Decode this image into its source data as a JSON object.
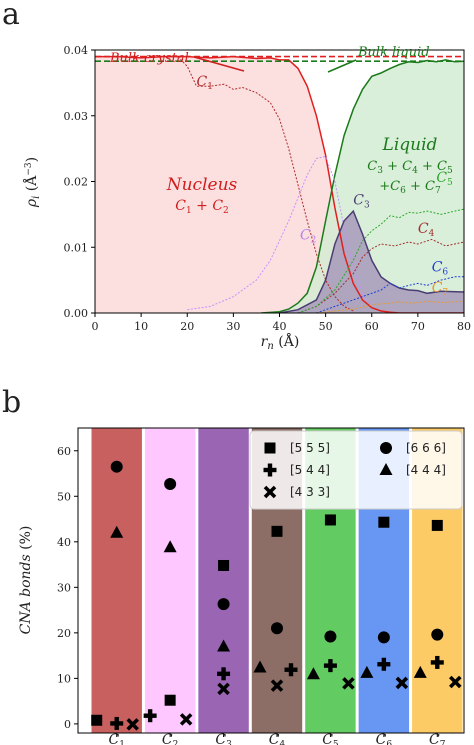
{
  "panel_labels": {
    "a": "a",
    "b": "b"
  },
  "chart_data": [
    {
      "id": "a",
      "type": "line",
      "xlabel": "r_n (Å)",
      "ylabel": "ρ_i (Å⁻³)",
      "xlim": [
        0,
        80
      ],
      "ylim": [
        0,
        0.04
      ],
      "x_ticks": [
        "0",
        "10",
        "20",
        "30",
        "40",
        "50",
        "60",
        "70",
        "80"
      ],
      "y_ticks": [
        "0.00",
        "0.01",
        "0.02",
        "0.03",
        "0.04"
      ],
      "reference_lines": [
        {
          "name": "Bulk crystal",
          "y": 0.039,
          "color": "#e02020",
          "style": "dashed"
        },
        {
          "name": "Bulk liquid",
          "y": 0.0383,
          "color": "#1b7a1b",
          "style": "dashed"
        }
      ],
      "annotations": {
        "bulk_crystal": "Bulk crystal",
        "bulk_liquid": "Bulk liquid",
        "nucleus": "Nucleus",
        "nucleus_sum": "C1 + C2",
        "liquid": "Liquid",
        "liquid_sum_1": "C3 + C4 + C5",
        "liquid_sum_2": "+C6 + C7",
        "c1": "C1",
        "c2": "C2",
        "c3": "C3",
        "c4": "C4",
        "c5": "C5",
        "c6": "C6",
        "c7": "C7"
      },
      "series": [
        {
          "name": "C1 + C2",
          "color": "#e02020",
          "fill": "#fcd9d9",
          "style": "solid",
          "x": [
            0,
            5,
            10,
            15,
            20,
            25,
            30,
            35,
            38,
            40,
            42,
            44,
            46,
            48,
            50,
            52,
            54,
            56,
            58,
            60,
            62,
            64,
            66,
            70,
            75,
            80
          ],
          "y": [
            0.039,
            0.039,
            0.0388,
            0.039,
            0.039,
            0.0388,
            0.039,
            0.0387,
            0.0388,
            0.0385,
            0.0385,
            0.0372,
            0.0345,
            0.03,
            0.024,
            0.016,
            0.009,
            0.0045,
            0.002,
            0.0008,
            0.0003,
            0.0001,
            0,
            0,
            0,
            0
          ]
        },
        {
          "name": "C3 + C4 + C5 + C6 + C7",
          "color": "#1b7a1b",
          "fill": "#d3ecd3",
          "style": "solid",
          "x": [
            36,
            40,
            42,
            44,
            46,
            48,
            50,
            52,
            54,
            56,
            58,
            60,
            62,
            64,
            66,
            68,
            70,
            72,
            74,
            76,
            78,
            80
          ],
          "y": [
            0,
            0.0002,
            0.0006,
            0.0015,
            0.003,
            0.007,
            0.014,
            0.021,
            0.027,
            0.031,
            0.034,
            0.036,
            0.0365,
            0.0372,
            0.0378,
            0.0382,
            0.0381,
            0.0384,
            0.0382,
            0.0385,
            0.0382,
            0.0383
          ]
        },
        {
          "name": "C1",
          "color": "#b02b2b",
          "style": "dotted",
          "x": [
            18,
            20,
            22,
            25,
            28,
            30,
            32,
            35,
            38,
            40,
            42,
            44,
            46,
            48,
            50,
            52,
            54,
            56
          ],
          "y": [
            0.039,
            0.0375,
            0.0345,
            0.0345,
            0.0348,
            0.034,
            0.0343,
            0.0335,
            0.032,
            0.0295,
            0.025,
            0.0195,
            0.014,
            0.009,
            0.005,
            0.0025,
            0.001,
            0.0003
          ]
        },
        {
          "name": "C2",
          "color": "#c990ff",
          "style": "dotted",
          "x": [
            20,
            25,
            30,
            35,
            38,
            40,
            42,
            44,
            46,
            48,
            50,
            52,
            54,
            56,
            58,
            60
          ],
          "y": [
            0.0005,
            0.001,
            0.0025,
            0.005,
            0.008,
            0.011,
            0.014,
            0.0175,
            0.021,
            0.0235,
            0.0238,
            0.02,
            0.013,
            0.007,
            0.003,
            0.001
          ]
        },
        {
          "name": "C3",
          "color": "#4a3d73",
          "fill": "#a08eb5",
          "style": "solid",
          "x": [
            40,
            44,
            48,
            50,
            52,
            54,
            56,
            58,
            60,
            62,
            64,
            66,
            68,
            70,
            72,
            75,
            80
          ],
          "y": [
            0,
            0.0005,
            0.002,
            0.005,
            0.0105,
            0.014,
            0.0155,
            0.012,
            0.008,
            0.0055,
            0.0045,
            0.0038,
            0.0035,
            0.0034,
            0.003,
            0.0033,
            0.0032
          ]
        },
        {
          "name": "C4",
          "color": "#a03030",
          "style": "dotted",
          "x": [
            44,
            48,
            52,
            56,
            58,
            60,
            62,
            65,
            68,
            70,
            73,
            76,
            80
          ],
          "y": [
            0,
            0.001,
            0.003,
            0.006,
            0.0085,
            0.0098,
            0.0105,
            0.0102,
            0.0108,
            0.0105,
            0.0112,
            0.0102,
            0.0108
          ]
        },
        {
          "name": "C5",
          "color": "#2ea82e",
          "style": "dotted",
          "x": [
            44,
            48,
            52,
            56,
            58,
            60,
            62,
            64,
            66,
            68,
            70,
            72,
            75,
            78,
            80
          ],
          "y": [
            0,
            0.001,
            0.0035,
            0.008,
            0.011,
            0.0125,
            0.0135,
            0.0148,
            0.0145,
            0.0153,
            0.0152,
            0.0155,
            0.015,
            0.0155,
            0.0158
          ]
        },
        {
          "name": "C6",
          "color": "#1f3fd4",
          "style": "dotted",
          "x": [
            48,
            52,
            56,
            58,
            60,
            62,
            64,
            66,
            68,
            70,
            72,
            75,
            78,
            80
          ],
          "y": [
            0,
            0.001,
            0.002,
            0.0025,
            0.003,
            0.0035,
            0.0045,
            0.0038,
            0.0042,
            0.0045,
            0.0042,
            0.005,
            0.0055,
            0.0055
          ]
        },
        {
          "name": "C7",
          "color": "#e79a2c",
          "style": "dotted",
          "x": [
            48,
            52,
            56,
            58,
            60,
            62,
            64,
            66,
            68,
            70,
            72,
            75,
            78,
            80
          ],
          "y": [
            0,
            0.0003,
            0.0006,
            0.0009,
            0.0012,
            0.0014,
            0.0015,
            0.0017,
            0.0015,
            0.0016,
            0.0018,
            0.0016,
            0.0017,
            0.0018
          ]
        }
      ]
    },
    {
      "id": "b",
      "type": "scatter",
      "xlabel": "",
      "ylabel": "CNA bonds (%)",
      "ylim": [
        -2,
        65
      ],
      "y_ticks": [
        "0",
        "10",
        "20",
        "30",
        "40",
        "50",
        "60"
      ],
      "categories": [
        "C1",
        "C2",
        "C3",
        "C4",
        "C5",
        "C6",
        "C7"
      ],
      "category_colors": [
        "#c96060",
        "#ffc7ff",
        "#9a66b4",
        "#8c6e66",
        "#62cb62",
        "#6796f3",
        "#fccb66"
      ],
      "legend": {
        "placement": "top-right",
        "entries": [
          "[5 5 5]",
          "[6 6 6]",
          "[5 4 4]",
          "[4 4 4]",
          "[4 3 3]"
        ]
      },
      "series": [
        {
          "name": "[5 5 5]",
          "marker": "square",
          "values": [
            0.8,
            5.2,
            34.8,
            42.3,
            44.8,
            44.3,
            43.6
          ]
        },
        {
          "name": "[6 6 6]",
          "marker": "circle",
          "values": [
            56.5,
            52.7,
            26.3,
            21.0,
            19.2,
            19.0,
            19.6
          ]
        },
        {
          "name": "[4 4 4]",
          "marker": "triangle",
          "values": [
            42.0,
            38.8,
            17.0,
            12.4,
            10.9,
            11.2,
            11.2
          ]
        },
        {
          "name": "[5 4 4]",
          "marker": "plus",
          "values": [
            0.1,
            1.8,
            11.0,
            11.9,
            12.8,
            13.1,
            13.5
          ]
        },
        {
          "name": "[4 3 3]",
          "marker": "x",
          "values": [
            -0.1,
            1.0,
            7.7,
            8.4,
            8.9,
            9.0,
            9.2
          ]
        }
      ]
    }
  ]
}
